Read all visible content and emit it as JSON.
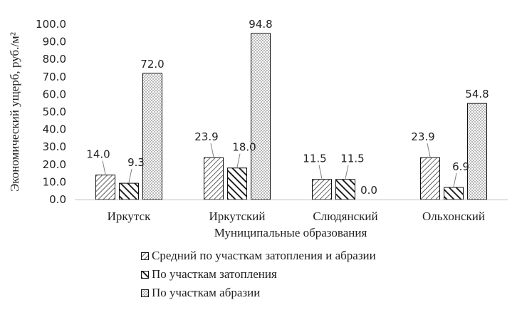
{
  "chart_data": {
    "type": "bar",
    "categories": [
      "Иркутск",
      "Иркутский",
      "Слюдянский",
      "Ольхонский"
    ],
    "series": [
      {
        "name": "Средний по участкам затопления и абразии",
        "values": [
          14.0,
          23.9,
          11.5,
          23.9
        ],
        "pattern": "diag-thin"
      },
      {
        "name": "По участкам затопления",
        "values": [
          9.3,
          18.0,
          11.5,
          6.9
        ],
        "pattern": "diag-thick"
      },
      {
        "name": "По участкам абразии",
        "values": [
          72.0,
          94.8,
          0.0,
          54.8
        ],
        "pattern": "dots"
      }
    ],
    "data_labels": [
      [
        "14.0",
        "23.9",
        "11.5",
        "23.9"
      ],
      [
        "9.3",
        "18.0",
        "11.5",
        "6.9"
      ],
      [
        "72.0",
        "94.8",
        "0.0",
        "54.8"
      ]
    ],
    "title": "",
    "xlabel": "Муниципальные образования",
    "ylabel": "Экономический ущерб, руб./м²",
    "ylim": [
      0,
      100
    ],
    "yticks": [
      "0.0",
      "10.0",
      "20.0",
      "30.0",
      "40.0",
      "50.0",
      "60.0",
      "70.0",
      "80.0",
      "90.0",
      "100.0"
    ],
    "grid": false,
    "legend_position": "bottom"
  }
}
